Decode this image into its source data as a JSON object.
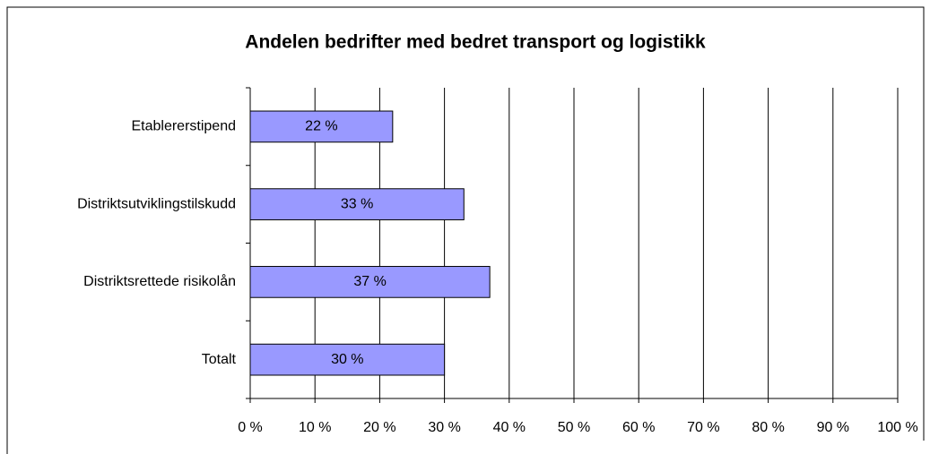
{
  "chart_data": {
    "type": "bar",
    "orientation": "horizontal",
    "title": "Andelen bedrifter med bedret transport og logistikk",
    "categories": [
      "Etablererstipend",
      "Distriktsutviklingstilskudd",
      "Distriktsrettede risikolån",
      "Totalt"
    ],
    "values": [
      22,
      33,
      37,
      30
    ],
    "value_labels": [
      "22 %",
      "33 %",
      "37 %",
      "30 %"
    ],
    "color": "#9999ff",
    "xlim": [
      0,
      100
    ],
    "xticks": [
      {
        "value": 0,
        "label": "0 %"
      },
      {
        "value": 10,
        "label": "10 %"
      },
      {
        "value": 20,
        "label": "20 %"
      },
      {
        "value": 30,
        "label": "30 %"
      },
      {
        "value": 40,
        "label": "40 %"
      },
      {
        "value": 50,
        "label": "50 %"
      },
      {
        "value": 60,
        "label": "60 %"
      },
      {
        "value": 70,
        "label": "70 %"
      },
      {
        "value": 80,
        "label": "80 %"
      },
      {
        "value": 90,
        "label": "90 %"
      },
      {
        "value": 100,
        "label": "100 %"
      }
    ],
    "grid": true
  }
}
